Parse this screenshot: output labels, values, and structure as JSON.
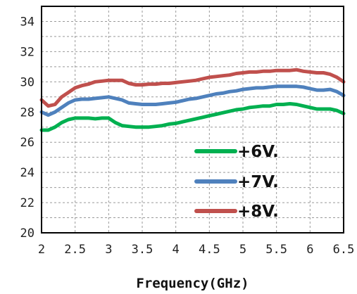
{
  "chart_data": {
    "type": "line",
    "title": "",
    "xlabel": "Frequency(GHz)",
    "ylabel": "",
    "xlim": [
      2,
      6.5
    ],
    "ylim": [
      20,
      35
    ],
    "xticks": [
      2,
      2.5,
      3,
      3.5,
      4,
      4.5,
      5,
      5.5,
      6,
      6.5
    ],
    "xtick_labels": [
      "2",
      "2.5",
      "3",
      "3.5",
      "4",
      "4.5",
      "5",
      "5.5",
      "6",
      "6.5"
    ],
    "yticks": [
      20,
      22,
      24,
      26,
      28,
      30,
      32,
      34
    ],
    "ytick_labels": [
      "20",
      "22",
      "24",
      "26",
      "28",
      "30",
      "32",
      "34"
    ],
    "grid": true,
    "legend_position": "lower-right",
    "series": [
      {
        "name": "+6V.",
        "color": "#00b050",
        "x": [
          2.0,
          2.1,
          2.2,
          2.3,
          2.4,
          2.5,
          2.6,
          2.7,
          2.8,
          2.9,
          3.0,
          3.1,
          3.2,
          3.3,
          3.4,
          3.5,
          3.6,
          3.7,
          3.8,
          3.9,
          4.0,
          4.1,
          4.2,
          4.3,
          4.4,
          4.5,
          4.6,
          4.7,
          4.8,
          4.9,
          5.0,
          5.1,
          5.2,
          5.3,
          5.4,
          5.5,
          5.6,
          5.7,
          5.8,
          5.9,
          6.0,
          6.1,
          6.2,
          6.3,
          6.4,
          6.5
        ],
        "values": [
          26.8,
          26.8,
          27.0,
          27.3,
          27.5,
          27.6,
          27.6,
          27.6,
          27.55,
          27.6,
          27.6,
          27.3,
          27.1,
          27.05,
          27.0,
          27.0,
          27.0,
          27.05,
          27.1,
          27.2,
          27.25,
          27.35,
          27.45,
          27.55,
          27.65,
          27.75,
          27.85,
          27.95,
          28.05,
          28.15,
          28.2,
          28.3,
          28.35,
          28.4,
          28.4,
          28.5,
          28.5,
          28.55,
          28.5,
          28.4,
          28.3,
          28.2,
          28.2,
          28.2,
          28.1,
          27.9
        ]
      },
      {
        "name": "+7V.",
        "color": "#4f81bd",
        "x": [
          2.0,
          2.1,
          2.2,
          2.3,
          2.4,
          2.5,
          2.6,
          2.7,
          2.8,
          2.9,
          3.0,
          3.1,
          3.2,
          3.3,
          3.4,
          3.5,
          3.6,
          3.7,
          3.8,
          3.9,
          4.0,
          4.1,
          4.2,
          4.3,
          4.4,
          4.5,
          4.6,
          4.7,
          4.8,
          4.9,
          5.0,
          5.1,
          5.2,
          5.3,
          5.4,
          5.5,
          5.6,
          5.7,
          5.8,
          5.9,
          6.0,
          6.1,
          6.2,
          6.3,
          6.4,
          6.5
        ],
        "values": [
          28.0,
          27.8,
          28.0,
          28.3,
          28.6,
          28.8,
          28.85,
          28.85,
          28.9,
          28.95,
          29.0,
          28.9,
          28.8,
          28.6,
          28.55,
          28.5,
          28.5,
          28.5,
          28.55,
          28.6,
          28.65,
          28.75,
          28.85,
          28.9,
          29.0,
          29.1,
          29.2,
          29.25,
          29.35,
          29.4,
          29.5,
          29.55,
          29.6,
          29.6,
          29.65,
          29.7,
          29.7,
          29.7,
          29.7,
          29.65,
          29.55,
          29.45,
          29.45,
          29.5,
          29.35,
          29.1
        ]
      },
      {
        "name": "+8V.",
        "color": "#c0504d",
        "x": [
          2.0,
          2.1,
          2.2,
          2.3,
          2.4,
          2.5,
          2.6,
          2.7,
          2.8,
          2.9,
          3.0,
          3.1,
          3.2,
          3.3,
          3.4,
          3.5,
          3.6,
          3.7,
          3.8,
          3.9,
          4.0,
          4.1,
          4.2,
          4.3,
          4.4,
          4.5,
          4.6,
          4.7,
          4.8,
          4.9,
          5.0,
          5.1,
          5.2,
          5.3,
          5.4,
          5.5,
          5.6,
          5.7,
          5.8,
          5.9,
          6.0,
          6.1,
          6.2,
          6.3,
          6.4,
          6.5
        ],
        "values": [
          28.8,
          28.4,
          28.5,
          29.0,
          29.3,
          29.6,
          29.75,
          29.85,
          30.0,
          30.05,
          30.1,
          30.1,
          30.1,
          29.9,
          29.8,
          29.8,
          29.85,
          29.85,
          29.9,
          29.9,
          29.95,
          30.0,
          30.05,
          30.1,
          30.2,
          30.3,
          30.35,
          30.4,
          30.45,
          30.55,
          30.6,
          30.65,
          30.65,
          30.7,
          30.7,
          30.75,
          30.75,
          30.75,
          30.8,
          30.7,
          30.65,
          30.6,
          30.6,
          30.5,
          30.3,
          30.0
        ]
      }
    ]
  }
}
